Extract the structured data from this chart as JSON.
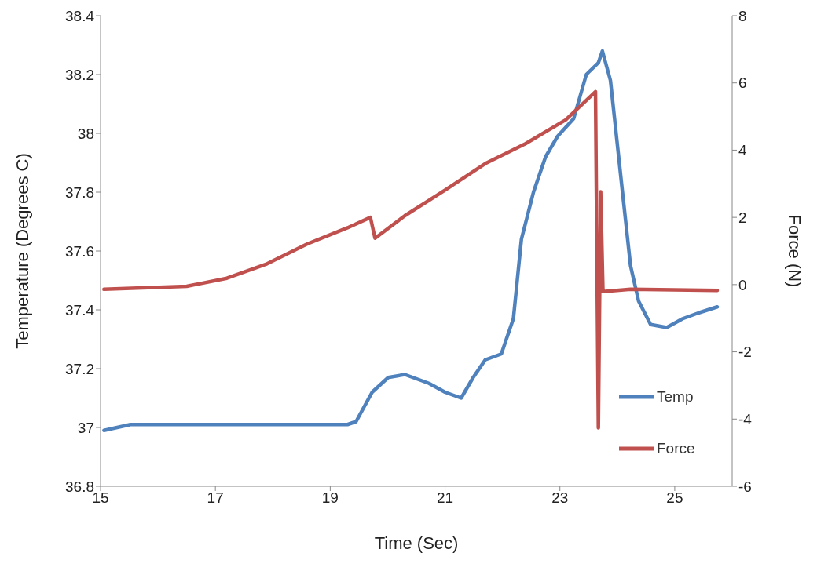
{
  "chart_data": {
    "type": "line",
    "xlabel": "Time (Sec)",
    "ylabel": "Temperature (Degrees C)",
    "y2label": "Force (N)",
    "xlim": [
      15,
      26
    ],
    "xticks": [
      15,
      17,
      19,
      21,
      23,
      25
    ],
    "ylim": [
      36.8,
      38.4
    ],
    "yticks": [
      36.8,
      37,
      37.2,
      37.4,
      37.6,
      37.8,
      38,
      38.2,
      38.4
    ],
    "y2lim": [
      -6,
      8
    ],
    "y2ticks": [
      -6,
      -4,
      -2,
      0,
      2,
      4,
      6,
      8
    ],
    "grid": false,
    "legend": "bottom right",
    "marker": "none",
    "line_style": "solid",
    "series": [
      {
        "name": "Temp",
        "color": "#4f81bd",
        "x": [
          15.06,
          15.52,
          16.5,
          17.9,
          19.3,
          19.45,
          19.73,
          20.01,
          20.3,
          20.72,
          21.0,
          21.28,
          21.49,
          21.7,
          21.98,
          22.19,
          22.33,
          22.54,
          22.75,
          22.96,
          23.24,
          23.46,
          23.67,
          23.74,
          23.88,
          24.09,
          24.23,
          24.37,
          24.58,
          24.86,
          25.14,
          25.42,
          25.74
        ],
        "values": [
          36.99,
          37.01,
          37.01,
          37.01,
          37.01,
          37.02,
          37.12,
          37.17,
          37.18,
          37.15,
          37.12,
          37.1,
          37.17,
          37.23,
          37.25,
          37.37,
          37.64,
          37.8,
          37.92,
          37.99,
          38.05,
          38.2,
          38.24,
          38.28,
          38.18,
          37.8,
          37.55,
          37.43,
          37.35,
          37.34,
          37.37,
          37.39,
          37.41
        ]
      },
      {
        "name": "Force",
        "color": "#c0504d",
        "axis": "y2",
        "x": [
          15.06,
          16.5,
          17.2,
          17.9,
          18.6,
          19.3,
          19.7,
          19.78,
          20.3,
          21.0,
          21.7,
          22.4,
          23.1,
          23.62,
          23.67,
          23.71,
          23.75,
          24.23,
          25.74
        ],
        "values": [
          -0.14,
          -0.05,
          0.19,
          0.62,
          1.21,
          1.69,
          2.0,
          1.38,
          2.05,
          2.81,
          3.6,
          4.19,
          4.9,
          5.74,
          -4.26,
          2.76,
          -0.21,
          -0.14,
          -0.17
        ]
      }
    ]
  }
}
